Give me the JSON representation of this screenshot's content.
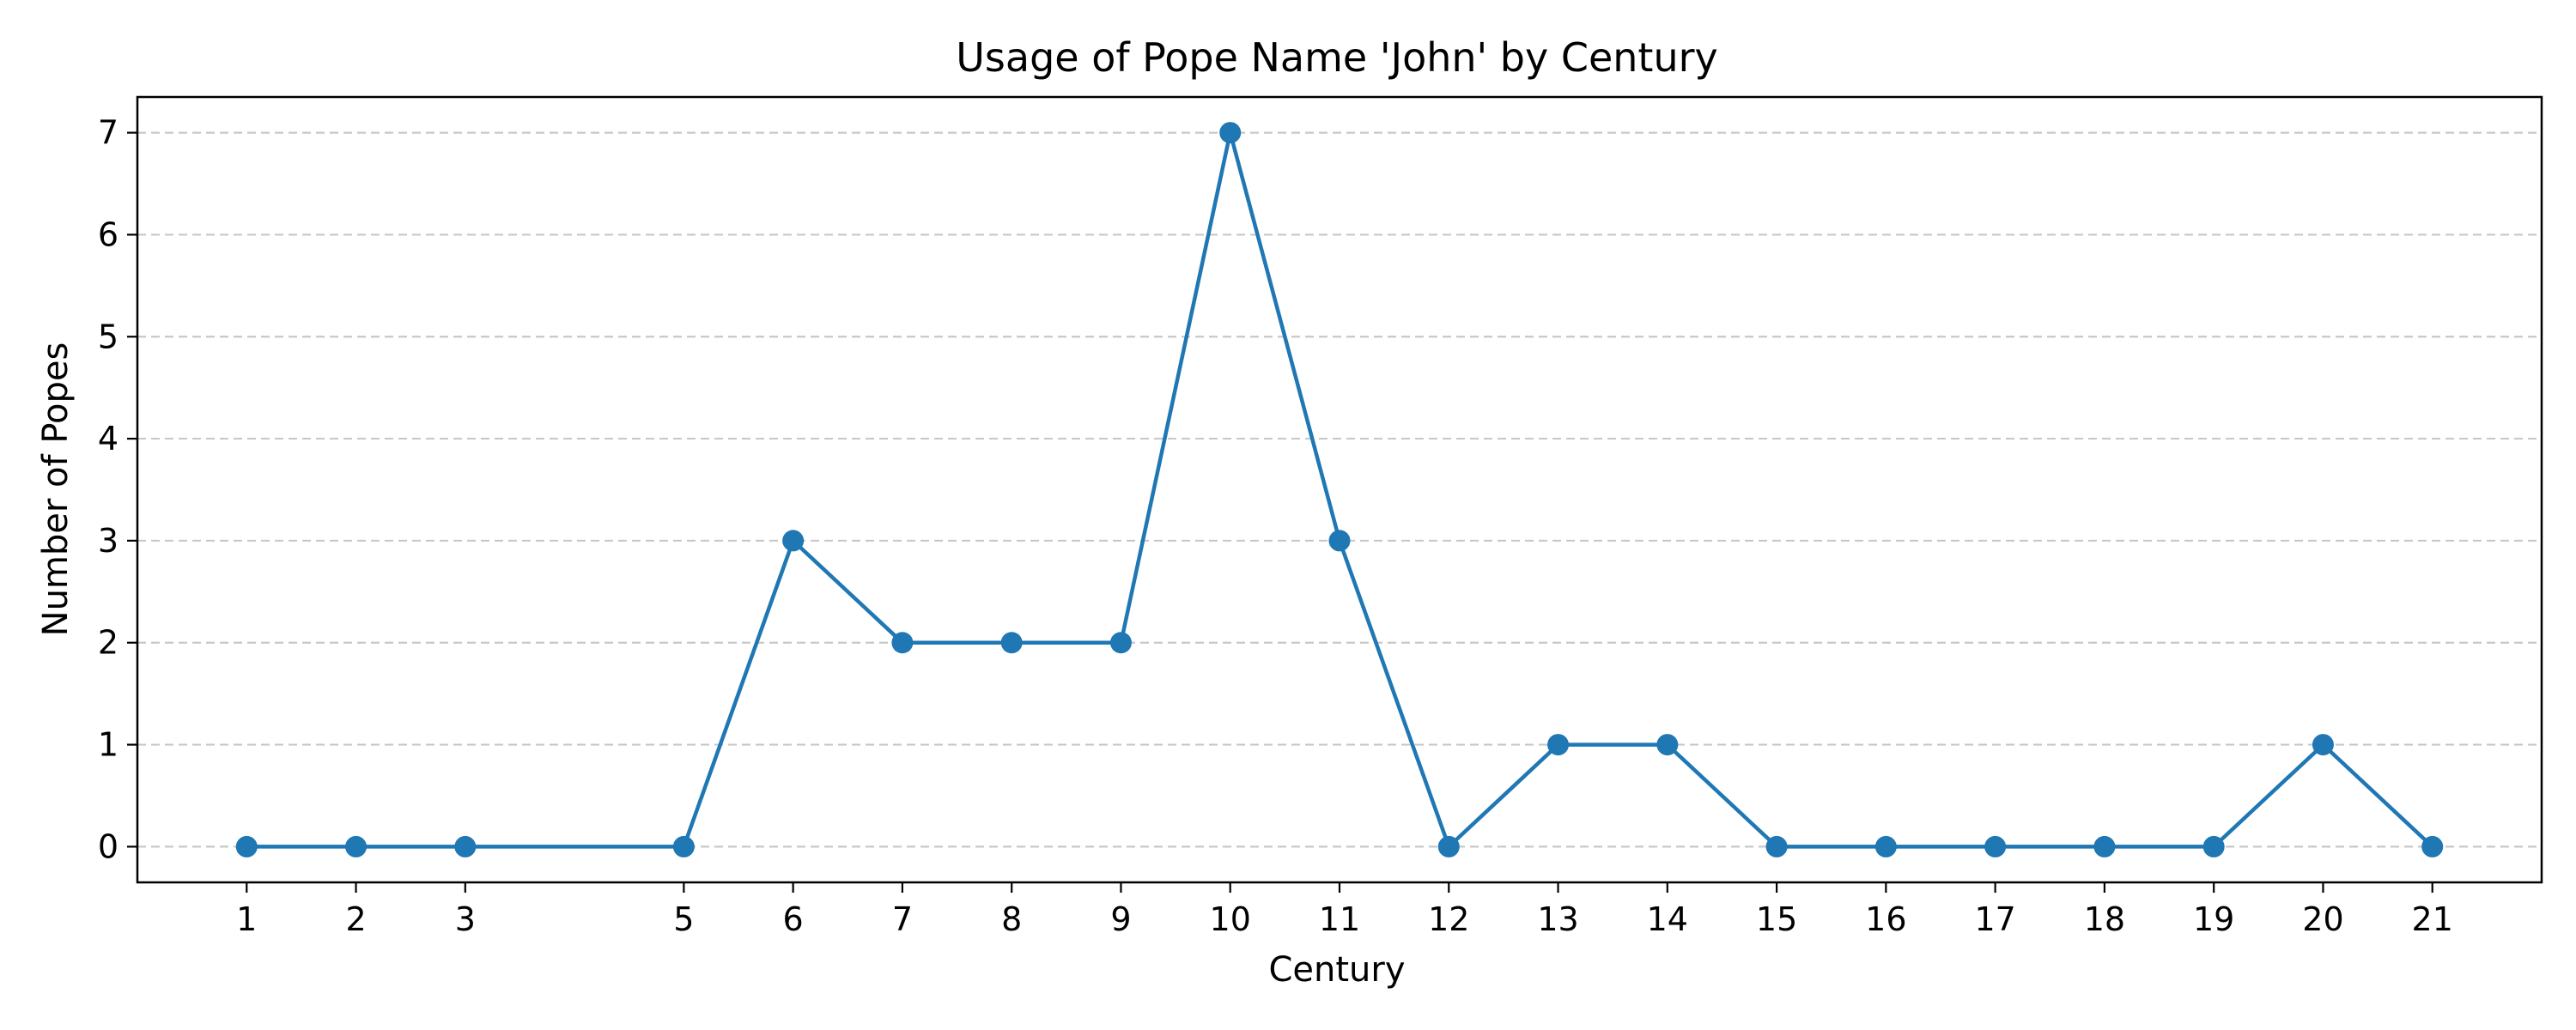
{
  "chart_data": {
    "type": "line",
    "title": "Usage of Pope Name 'John' by Century",
    "xlabel": "Century",
    "ylabel": "Number of Popes",
    "x": [
      1,
      2,
      3,
      5,
      6,
      7,
      8,
      9,
      10,
      11,
      12,
      13,
      14,
      15,
      16,
      17,
      18,
      19,
      20,
      21
    ],
    "series": [
      {
        "values": [
          0,
          0,
          0,
          0,
          3,
          2,
          2,
          2,
          7,
          3,
          0,
          1,
          1,
          0,
          0,
          0,
          0,
          0,
          1,
          0
        ]
      }
    ],
    "xticks": [
      "1",
      "2",
      "3",
      "5",
      "6",
      "7",
      "8",
      "9",
      "10",
      "11",
      "12",
      "13",
      "14",
      "15",
      "16",
      "17",
      "18",
      "19",
      "20",
      "21"
    ],
    "yticks": [
      "0",
      "1",
      "2",
      "3",
      "4",
      "5",
      "6",
      "7"
    ],
    "xlim": [
      0,
      22
    ],
    "ylim": [
      -0.35,
      7.35
    ],
    "grid": "y-dashed",
    "line_color": "#1f77b4",
    "grid_color": "#c8c8c8"
  }
}
